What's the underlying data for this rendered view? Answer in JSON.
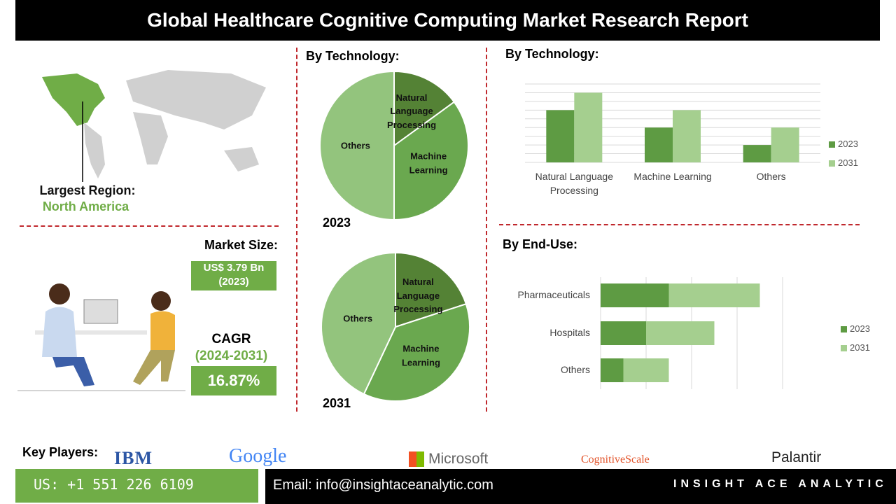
{
  "header": {
    "title": "Global Healthcare Cognitive Computing Market Research Report"
  },
  "region": {
    "label": "Largest Region:",
    "value": "North America"
  },
  "market_size": {
    "label": "Market Size:",
    "value": "US$ 3.79 Bn",
    "year": "(2023)"
  },
  "cagr": {
    "label": "CAGR",
    "period": "(2024-2031)",
    "value": "16.87%"
  },
  "chart_data": [
    {
      "type": "pie",
      "title": "By Technology:",
      "year": "2023",
      "categories": [
        "Natural Language Processing",
        "Machine Learning",
        "Others"
      ],
      "values": [
        15,
        35,
        50
      ],
      "colors": [
        "#548235",
        "#6aa84f",
        "#93c47d"
      ]
    },
    {
      "type": "pie",
      "year": "2031",
      "categories": [
        "Natural Language Processing",
        "Machine Learning",
        "Others"
      ],
      "values": [
        20,
        37,
        43
      ],
      "colors": [
        "#548235",
        "#6aa84f",
        "#93c47d"
      ]
    },
    {
      "type": "bar",
      "title": "By Technology:",
      "categories": [
        "Natural Language Processing",
        "Machine Learning",
        "Others"
      ],
      "series": [
        {
          "name": "2023",
          "color": "#5e9b43",
          "values": [
            6,
            4,
            2
          ]
        },
        {
          "name": "2031",
          "color": "#a5cf8f",
          "values": [
            8,
            6,
            4
          ]
        }
      ],
      "ylim": [
        0,
        9
      ],
      "yticks": [
        0,
        1,
        2,
        3,
        4,
        5,
        6,
        7,
        8,
        9
      ],
      "grid": true
    },
    {
      "type": "stacked-hbar",
      "title": "By End-Use:",
      "categories": [
        "Pharmaceuticals",
        "Hospitals",
        "Others"
      ],
      "series": [
        {
          "name": "2023",
          "color": "#5e9b43",
          "values": [
            1.5,
            1.0,
            0.5
          ]
        },
        {
          "name": "2031",
          "color": "#a5cf8f",
          "values": [
            2.0,
            1.5,
            1.0
          ]
        }
      ],
      "xlim": [
        0,
        4
      ],
      "xticks": [
        0,
        1,
        2,
        3,
        4
      ],
      "grid": true
    }
  ],
  "key_players": {
    "label": "Key Players:",
    "names": [
      "IBM",
      "Google",
      "Microsoft",
      "CognitiveScale",
      "Palantir"
    ]
  },
  "footer": {
    "phone": "US: +1 551 226 6109",
    "email": "Email: info@insightaceanalytic.com",
    "brand": "INSIGHT ACE ANALYTIC"
  }
}
